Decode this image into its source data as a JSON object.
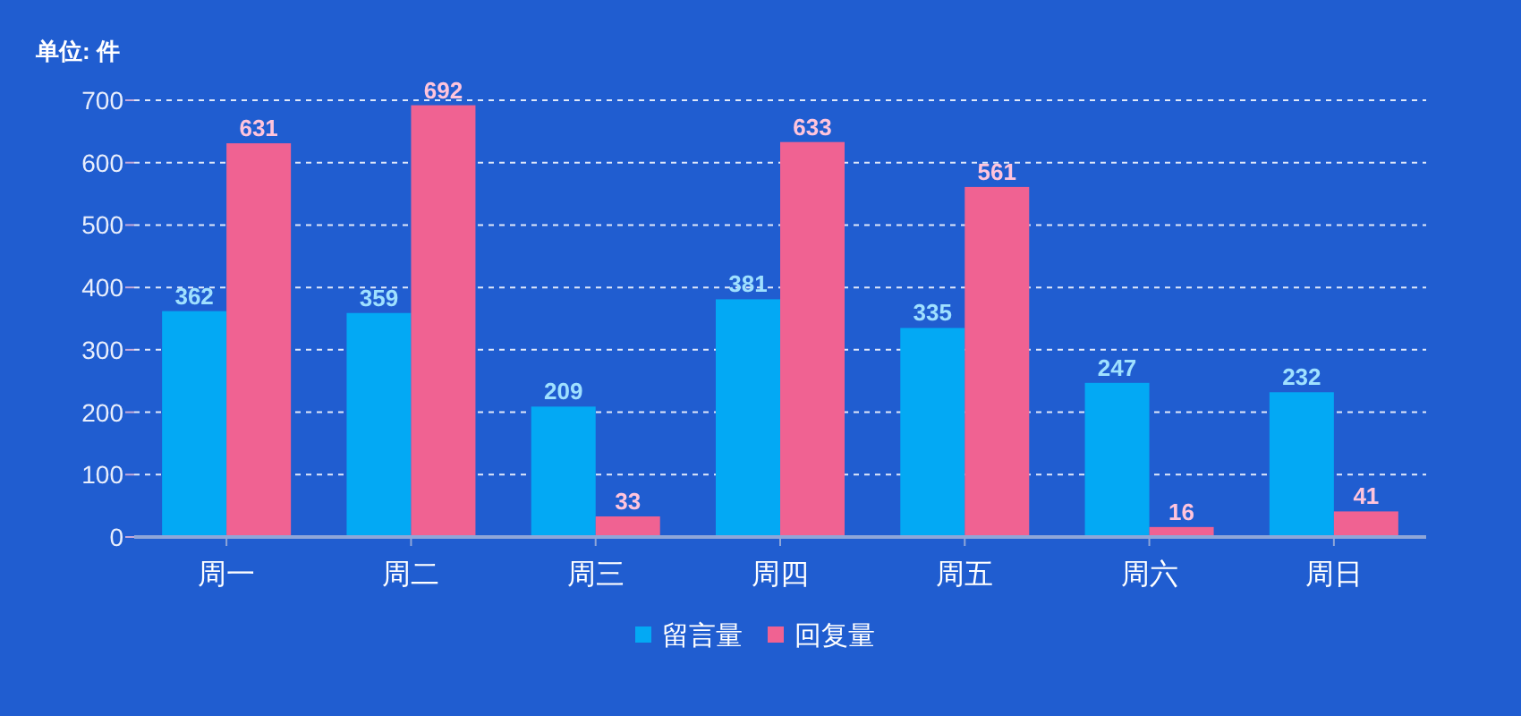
{
  "chart_data": {
    "type": "bar",
    "ylabel": "单位: 件",
    "categories": [
      "周一",
      "周二",
      "周三",
      "周四",
      "周五",
      "周六",
      "周日"
    ],
    "series": [
      {
        "name": "留言量",
        "color": "#03a9f4",
        "values": [
          362,
          359,
          209,
          381,
          335,
          247,
          232
        ]
      },
      {
        "name": "回复量",
        "color": "#f06292",
        "values": [
          631,
          692,
          33,
          633,
          561,
          16,
          41
        ]
      }
    ],
    "ylim": [
      0,
      700
    ],
    "yticks": [
      0,
      100,
      200,
      300,
      400,
      500,
      600,
      700
    ],
    "grid": "y",
    "legend": "bottom",
    "data_labels": true
  }
}
